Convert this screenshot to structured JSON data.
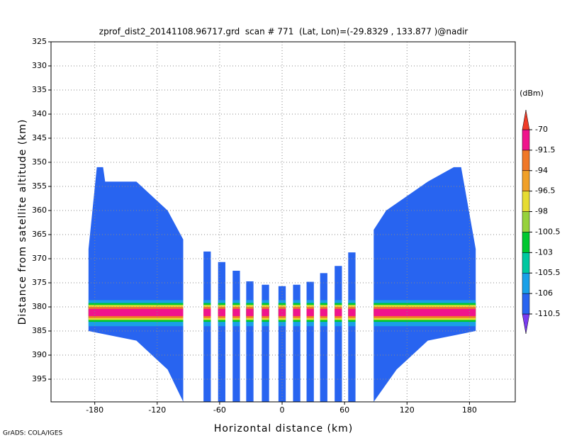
{
  "chart_data": {
    "type": "profile",
    "title": "zprof_dist2_20141108.96717.grd  scan # 771  (Lat, Lon)=(-29.8329 , 133.877 )@nadir",
    "x_label": "Horizontal distance (km)",
    "y_label": "Distance from satellite altitude (km)",
    "footer": "GrADS: COLA/IGES",
    "xlim": [
      -222,
      224
    ],
    "ylim": [
      325,
      399.7
    ],
    "xticks": [
      -180,
      -120,
      -60,
      0,
      60,
      120,
      180
    ],
    "yticks": [
      325,
      330,
      335,
      340,
      345,
      350,
      355,
      360,
      365,
      370,
      375,
      380,
      385,
      390,
      395
    ],
    "grid": true,
    "swath_color": "#2864f0",
    "swaths": [
      {
        "x": [
          -186,
          -178,
          -172,
          -170,
          -140,
          -110,
          -95,
          -95,
          -110,
          -140,
          -186
        ],
        "y": [
          368,
          351,
          351,
          354,
          354,
          360,
          366,
          399.7,
          393,
          387,
          385
        ]
      },
      {
        "x": [
          -75.5,
          -68.5,
          -68.5,
          -75.5
        ],
        "y": [
          368.5,
          368.5,
          399.7,
          399.7
        ]
      },
      {
        "x": [
          -61.5,
          -54.5,
          -54.5,
          -61.5
        ],
        "y": [
          370.7,
          370.7,
          399.7,
          399.7
        ]
      },
      {
        "x": [
          -47.5,
          -40.5,
          -40.5,
          -47.5
        ],
        "y": [
          372.5,
          372.5,
          399.7,
          399.7
        ]
      },
      {
        "x": [
          -34.5,
          -27.5,
          -27.5,
          -34.5
        ],
        "y": [
          374.7,
          374.7,
          399.7,
          399.7
        ]
      },
      {
        "x": [
          -19.5,
          -12.5,
          -12.5,
          -19.5
        ],
        "y": [
          375.4,
          375.4,
          399.7,
          399.7
        ]
      },
      {
        "x": [
          -3.5,
          3.5,
          3.5,
          -3.5
        ],
        "y": [
          375.7,
          375.7,
          399.7,
          399.7
        ]
      },
      {
        "x": [
          10.5,
          17.5,
          17.5,
          10.5
        ],
        "y": [
          375.4,
          375.4,
          399.7,
          399.7
        ]
      },
      {
        "x": [
          23.5,
          30.5,
          30.5,
          23.5
        ],
        "y": [
          374.8,
          374.8,
          399.7,
          399.7
        ]
      },
      {
        "x": [
          36.5,
          43.5,
          43.5,
          36.5
        ],
        "y": [
          373,
          373,
          399.7,
          399.7
        ]
      },
      {
        "x": [
          50.5,
          57.5,
          57.5,
          50.5
        ],
        "y": [
          371.5,
          371.5,
          399.7,
          399.7
        ]
      },
      {
        "x": [
          63.5,
          70.5,
          70.5,
          63.5
        ],
        "y": [
          368.7,
          368.7,
          399.7,
          399.7
        ]
      },
      {
        "x": [
          88,
          100,
          140,
          165,
          172,
          186,
          186,
          140,
          110,
          88
        ],
        "y": [
          364,
          360,
          354,
          351,
          351,
          368,
          385,
          387,
          393,
          399.7
        ]
      }
    ],
    "band_x": [
      -190,
      190
    ],
    "bands": [
      {
        "top": 378.6,
        "bottom": 384,
        "color": "#19a0e8"
      },
      {
        "top": 379.2,
        "bottom": 383.1,
        "color": "#00c830"
      },
      {
        "top": 379.6,
        "bottom": 382.7,
        "color": "#e6dc32"
      },
      {
        "top": 380,
        "bottom": 382.3,
        "color": "#f07828"
      },
      {
        "top": 380.4,
        "bottom": 381.9,
        "color": "#f0148c"
      }
    ],
    "colorbar": {
      "label": "(dBm)",
      "levels": [
        -110.5,
        -106,
        -105.5,
        -103,
        -100.5,
        -98,
        -96.5,
        -94,
        -91.5,
        -70
      ],
      "colors": [
        "#7a3cf0",
        "#2864f0",
        "#19a0e8",
        "#00c8a0",
        "#00c830",
        "#96d23c",
        "#e6dc32",
        "#f0a028",
        "#f07828",
        "#f0148c",
        "#f03c28"
      ]
    }
  }
}
